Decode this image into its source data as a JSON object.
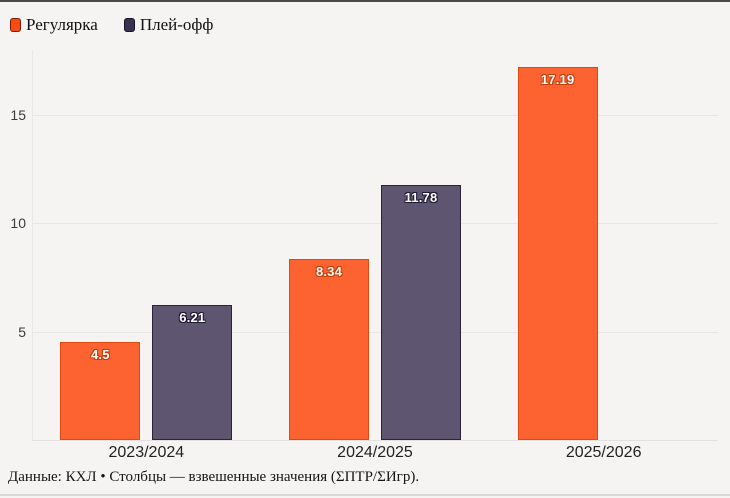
{
  "legend": {
    "items": [
      {
        "label": "Регулярка",
        "swatch_color": "#f84b16"
      },
      {
        "label": "Плей-офф",
        "swatch_color": "#393250"
      }
    ]
  },
  "footer": {
    "text": "Данные: КХЛ • Столбцы — взвешенные значения (ΣПТР/ΣИгр)."
  },
  "chart_data": {
    "type": "bar",
    "categories": [
      "2023/2024",
      "2024/2025",
      "2025/2026"
    ],
    "series": [
      {
        "name": "Регулярка",
        "values": [
          4.5,
          8.34,
          17.19
        ],
        "color": "#fc6331",
        "border_color": "#df4a12",
        "label_outline": "#c43d08"
      },
      {
        "name": "Плей-офф",
        "values": [
          6.21,
          11.78,
          null
        ],
        "color": "#5e5570",
        "border_color": "#29243a",
        "label_outline": "#1d1930"
      }
    ],
    "yticks": [
      5,
      10,
      15
    ],
    "ylim": [
      0,
      18.4
    ],
    "grid": true,
    "legend_position": "top-left",
    "background": "#f5f4f3"
  }
}
